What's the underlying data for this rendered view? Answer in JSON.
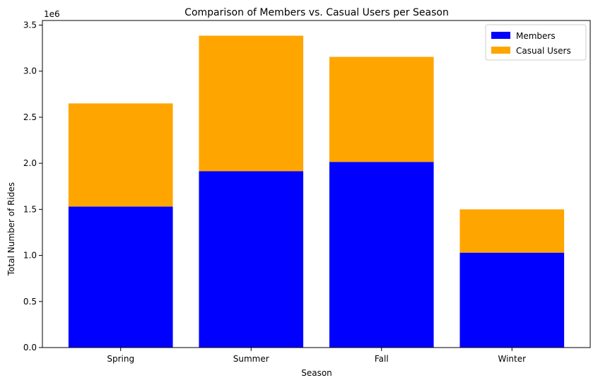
{
  "chart_data": {
    "type": "bar",
    "stacked": true,
    "title": "Comparison of Members vs. Casual Users per Season",
    "xlabel": "Season",
    "ylabel": "Total Number of Rides",
    "y_multiplier_label": "1e6",
    "categories": [
      "Spring",
      "Summer",
      "Fall",
      "Winter"
    ],
    "series": [
      {
        "name": "Members",
        "color": "#0000ff",
        "values": [
          1530000,
          1915000,
          2015000,
          1030000
        ]
      },
      {
        "name": "Casual Users",
        "color": "#ffa500",
        "values": [
          1120000,
          1470000,
          1140000,
          470000
        ]
      }
    ],
    "ylim": [
      0,
      3550000
    ],
    "yticks": [
      0,
      500000,
      1000000,
      1500000,
      2000000,
      2500000,
      3000000,
      3500000
    ],
    "ytick_labels": [
      "0.0",
      "0.5",
      "1.0",
      "1.5",
      "2.0",
      "2.5",
      "3.0",
      "3.5"
    ],
    "legend_position": "top-right",
    "grid": false
  }
}
